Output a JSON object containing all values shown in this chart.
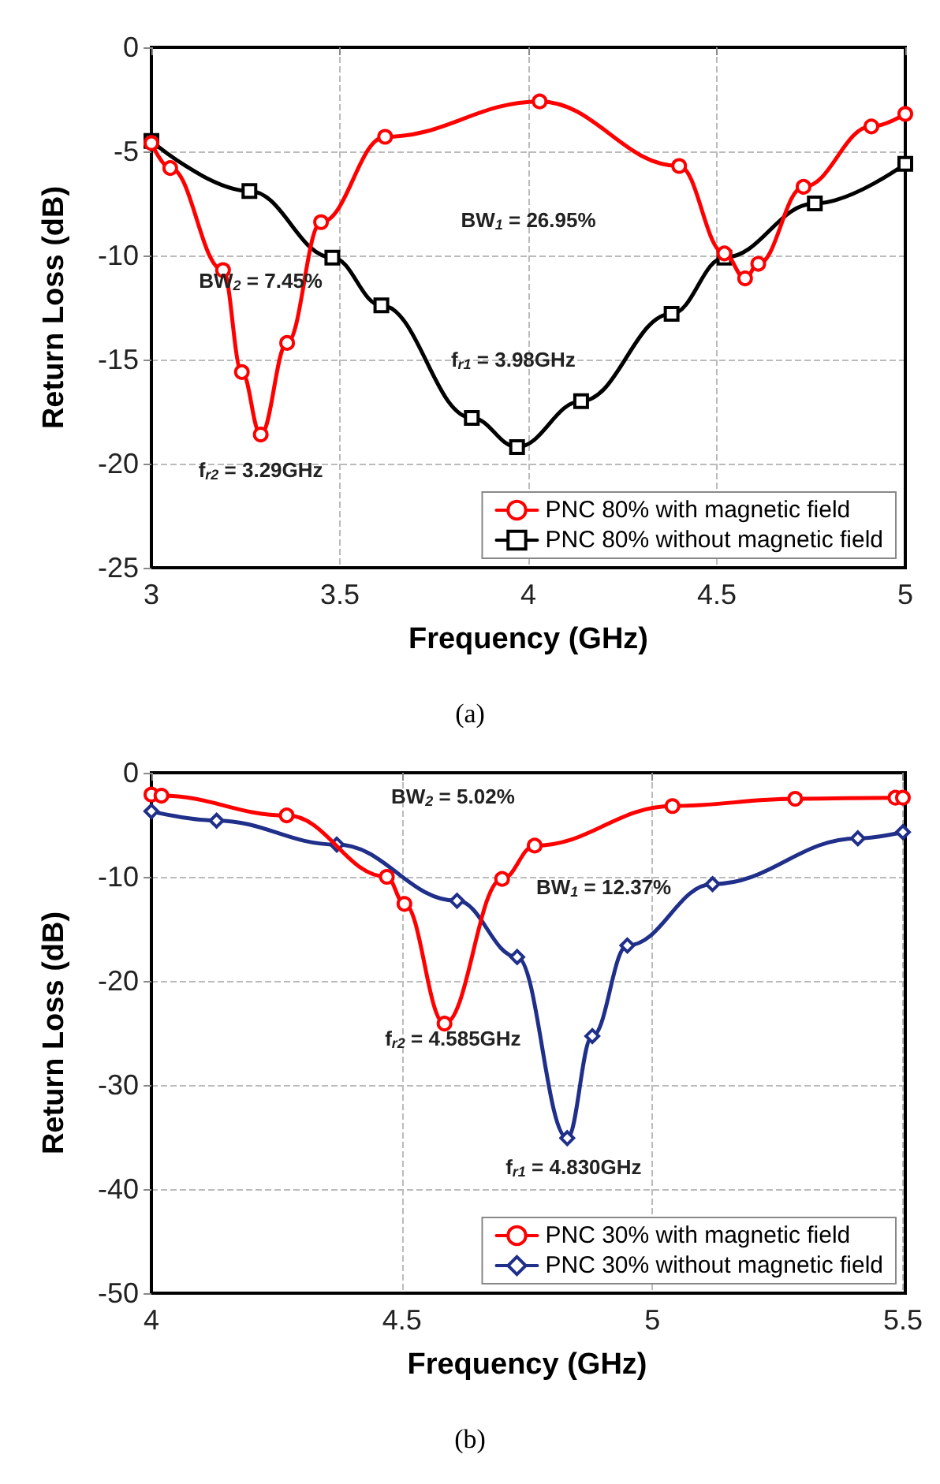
{
  "chart_data": [
    {
      "type": "line",
      "title": "(a)",
      "xlabel": "Frequency (GHz)",
      "ylabel": "Return Loss (dB)",
      "xlim": [
        3,
        5
      ],
      "ylim": [
        -25,
        0
      ],
      "xticks": [
        3,
        3.5,
        4,
        4.5,
        5
      ],
      "yticks": [
        -25,
        -20,
        -15,
        -10,
        -5,
        0
      ],
      "grid": true,
      "legend": "bottom right",
      "line_style": "solid",
      "series": [
        {
          "name": "PNC 80% with magnetic field",
          "color": "#ff0000",
          "marker": "circle",
          "x": [
            3,
            3.05,
            3.19,
            3.24,
            3.29,
            3.36,
            3.45,
            3.62,
            4.03,
            4.4,
            4.52,
            4.575,
            4.61,
            4.73,
            4.91,
            5
          ],
          "values": [
            -4.6,
            -5.8,
            -10.7,
            -15.6,
            -18.6,
            -14.2,
            -8.4,
            -4.3,
            -2.6,
            -5.7,
            -9.9,
            -11.1,
            -10.4,
            -6.7,
            -3.8,
            -3.2
          ]
        },
        {
          "name": "PNC 80% without magnetic field",
          "color": "#000000",
          "marker": "square",
          "x": [
            3,
            3.26,
            3.48,
            3.61,
            3.85,
            3.97,
            4.14,
            4.38,
            4.52,
            4.76,
            5
          ],
          "values": [
            -4.5,
            -6.9,
            -10.1,
            -12.4,
            -17.8,
            -19.2,
            -17,
            -12.8,
            -10.1,
            -7.5,
            -5.6
          ]
        }
      ],
      "annotations": [
        "BW$_{1}$ = 26.95%",
        "BW$_{2}$ = 7.45%",
        "f$_{r1}$ = 3.98GHz",
        "f$_{r2}$ = 3.29GHz"
      ]
    },
    {
      "type": "line",
      "title": "(b)",
      "xlabel": "Frequency (GHz)",
      "ylabel": "Return Loss (dB)",
      "xlim": [
        4,
        5.5
      ],
      "ylim": [
        -50,
        0
      ],
      "xticks": [
        4,
        4.5,
        5,
        5.5
      ],
      "yticks": [
        -50,
        -40,
        -30,
        -20,
        -10,
        0
      ],
      "grid": true,
      "legend": "bottom right",
      "line_style": "solid",
      "series": [
        {
          "name": "PNC 30% with magnetic field",
          "color": "#ff0000",
          "marker": "circle",
          "x": [
            4,
            4.02,
            4.27,
            4.47,
            4.505,
            4.585,
            4.7,
            4.765,
            5.04,
            5.285,
            5.485,
            5.5
          ],
          "values": [
            -2.1,
            -2.2,
            -4.1,
            -10,
            -12.6,
            -24.1,
            -10.2,
            -7,
            -3.2,
            -2.5,
            -2.4,
            -2.4
          ]
        },
        {
          "name": "PNC 30% without magnetic field",
          "color": "#1f2f8a",
          "marker": "diamond",
          "x": [
            4,
            4.13,
            4.37,
            4.61,
            4.73,
            4.83,
            4.88,
            4.95,
            5.12,
            5.41,
            5.5
          ],
          "values": [
            -3.7,
            -4.6,
            -6.9,
            -12.3,
            -17.7,
            -35.1,
            -25.3,
            -16.6,
            -10.7,
            -6.3,
            -5.7
          ]
        }
      ],
      "annotations": [
        "BW$_{2}$ = 5.02%",
        "BW$_{1}$ = 12.37%",
        "f$_{r2}$ = 4.585GHz",
        "f$_{r1}$ = 4.830GHz"
      ]
    }
  ]
}
